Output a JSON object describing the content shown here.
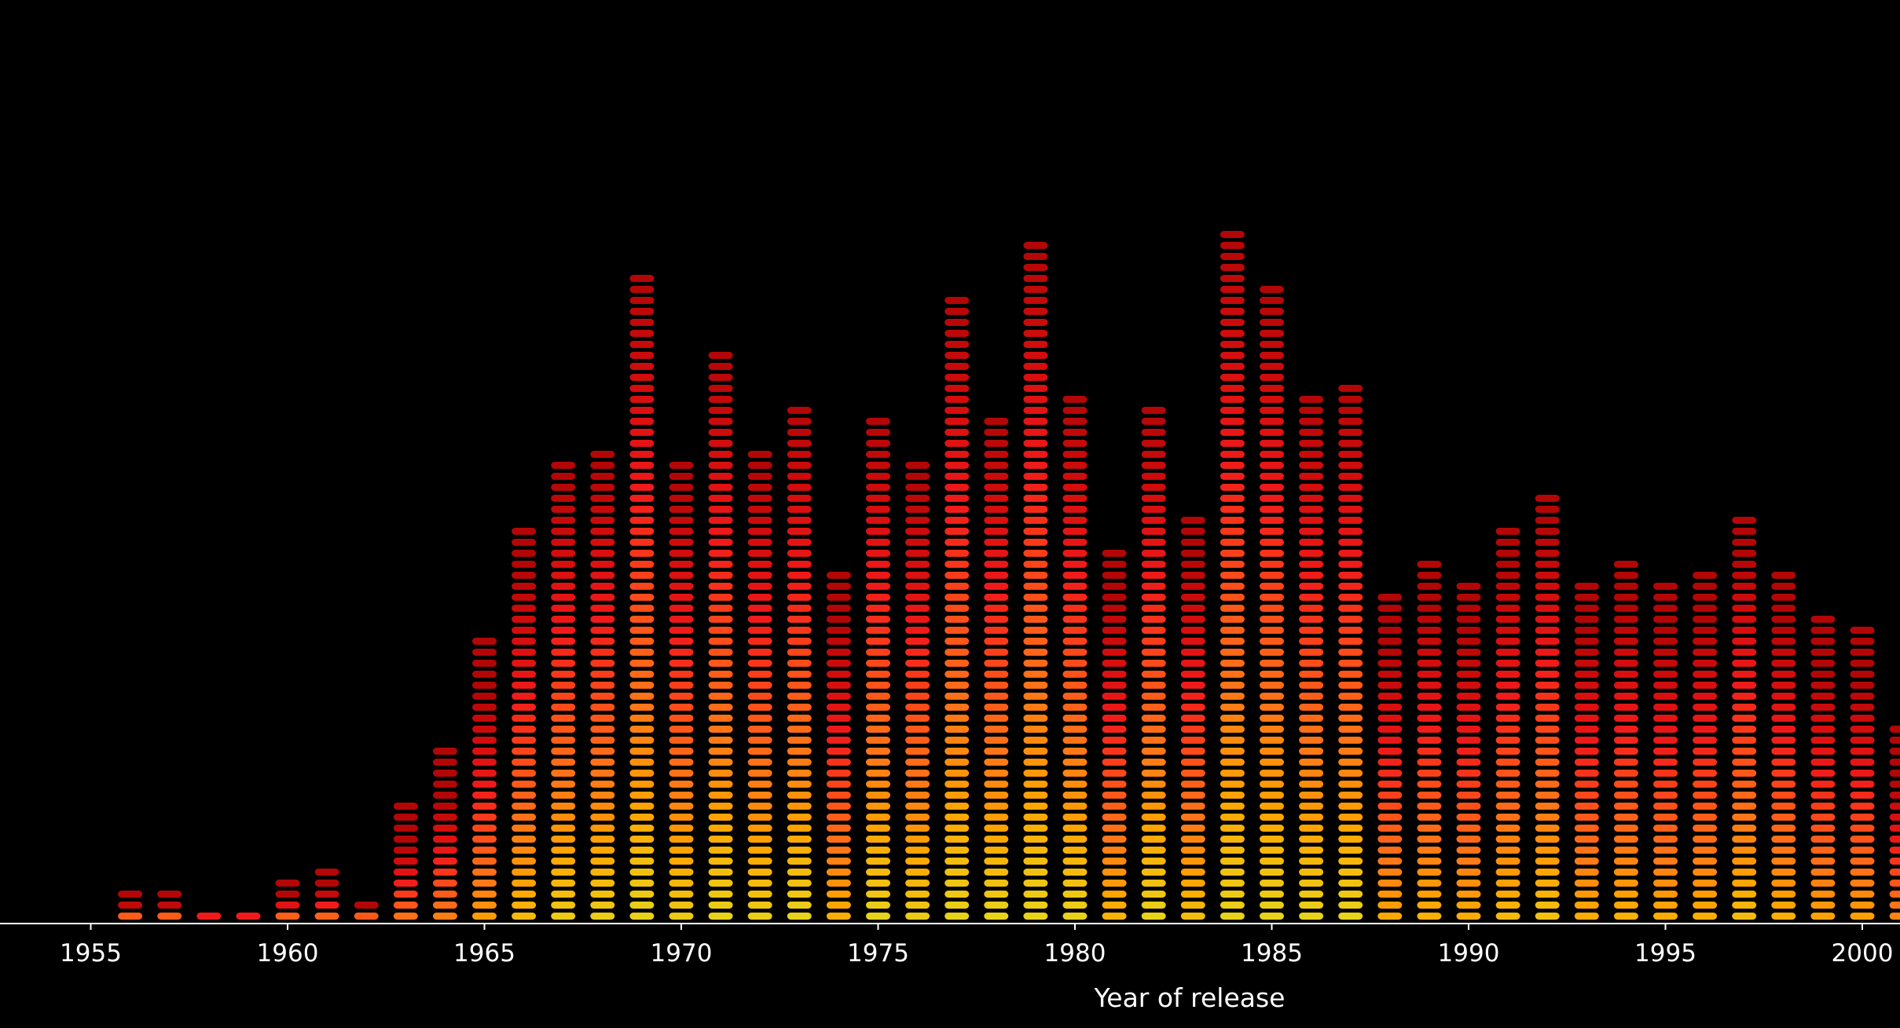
{
  "chart_data": {
    "type": "bar",
    "style": "stacked-pill-equalizer",
    "xlabel": "Year of release",
    "ylabel": "",
    "x": [
      1956,
      1957,
      1958,
      1959,
      1960,
      1961,
      1962,
      1963,
      1964,
      1965,
      1966,
      1967,
      1968,
      1969,
      1970,
      1971,
      1972,
      1973,
      1974,
      1975,
      1976,
      1977,
      1978,
      1979,
      1980,
      1981,
      1982,
      1983,
      1984,
      1985,
      1986,
      1987,
      1988,
      1989,
      1990,
      1991,
      1992,
      1993,
      1994,
      1995,
      1996,
      1997,
      1998,
      1999,
      2000,
      2001
    ],
    "values": [
      3,
      3,
      1,
      1,
      4,
      5,
      2,
      11,
      16,
      26,
      36,
      42,
      43,
      59,
      42,
      52,
      43,
      47,
      32,
      46,
      42,
      57,
      46,
      62,
      48,
      34,
      47,
      37,
      63,
      58,
      48,
      49,
      30,
      33,
      31,
      36,
      39,
      31,
      33,
      31,
      32,
      37,
      32,
      28,
      27,
      18
    ],
    "unit_colors_bottom_to_top": [
      "#1e8c2e",
      "#5cb82e",
      "#e8d21a",
      "#ffa500",
      "#ff7518",
      "#ff4a1a",
      "#f01a1a",
      "#d40d0d",
      "#b30606"
    ],
    "xticks": [
      "1955",
      "1960",
      "1965",
      "1970",
      "1975",
      "1980",
      "1985",
      "1990",
      "1995",
      "2000"
    ],
    "xlim": [
      1953.75,
      2001.2
    ],
    "grid": false,
    "legend": "none"
  }
}
